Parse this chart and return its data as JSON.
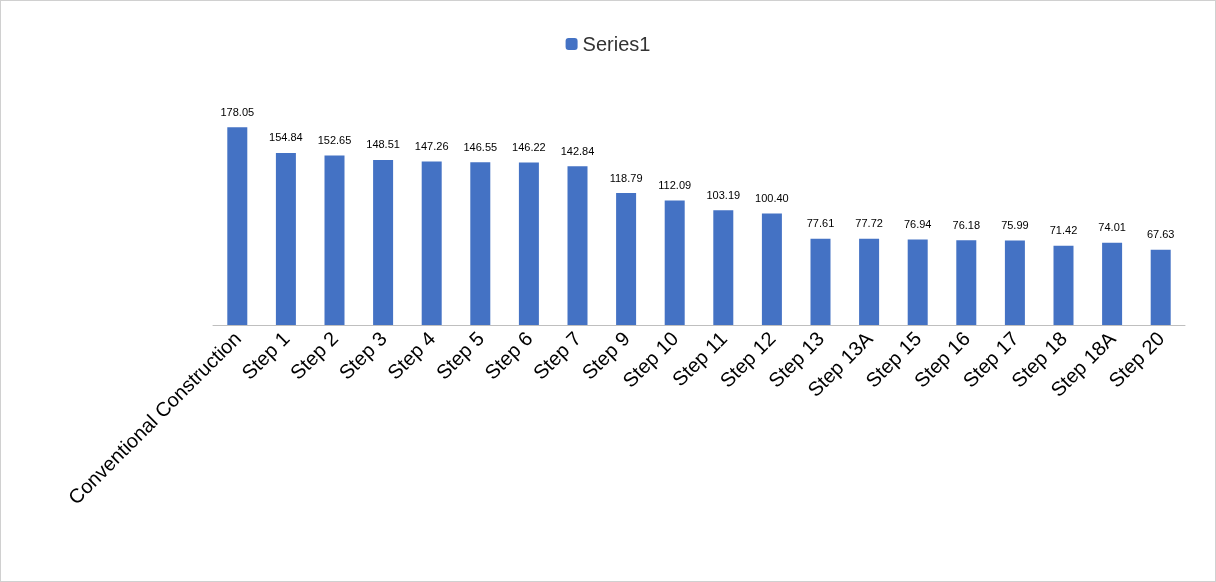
{
  "chart_data": {
    "type": "bar",
    "categories": [
      "Conventional Construction",
      "Step 1",
      "Step 2",
      "Step 3",
      "Step 4",
      "Step 5",
      "Step 6",
      "Step 7",
      "Step 9",
      "Step 10",
      "Step 11",
      "Step 12",
      "Step 13",
      "Step 13A",
      "Step 15",
      "Step 16",
      "Step 17",
      "Step 18",
      "Step 18A",
      "Step 20"
    ],
    "series": [
      {
        "name": "Series1",
        "color": "#4472c4",
        "values": [
          178.05,
          154.84,
          152.65,
          148.51,
          147.26,
          146.55,
          146.22,
          142.84,
          118.79,
          112.09,
          103.19,
          100.4,
          77.61,
          77.72,
          76.94,
          76.18,
          75.99,
          71.42,
          74.01,
          67.63
        ],
        "value_labels": [
          "178.05",
          "154.84",
          "152.65",
          "148.51",
          "147.26",
          "146.55",
          "146.22",
          "142.84",
          "118.79",
          "112.09",
          "103.19",
          "100.40",
          "77.61",
          "77.72",
          "76.94",
          "76.18",
          "75.99",
          "71.42",
          "74.01",
          "67.63"
        ]
      }
    ],
    "legend": "top",
    "grid": false
  }
}
